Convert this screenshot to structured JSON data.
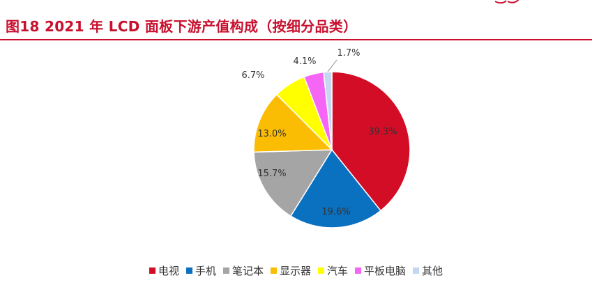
{
  "figure": {
    "title": "图18  2021 年 LCD 面板下游产值构成（按细分品类）"
  },
  "chart_data": {
    "type": "pie",
    "title": "",
    "slices": [
      {
        "label": "电视",
        "value": 39.3,
        "display": "39.3%",
        "color": "#d40d27"
      },
      {
        "label": "手机",
        "value": 19.6,
        "display": "19.6%",
        "color": "#0a70c0"
      },
      {
        "label": "笔记本",
        "value": 15.7,
        "display": "15.7%",
        "color": "#a5a5a5"
      },
      {
        "label": "显示器",
        "value": 13.0,
        "display": "13.0%",
        "color": "#fbbd04"
      },
      {
        "label": "汽车",
        "value": 6.7,
        "display": "6.7%",
        "color": "#ffff00"
      },
      {
        "label": "平板电脑",
        "value": 4.1,
        "display": "4.1%",
        "color": "#f566f5"
      },
      {
        "label": "其他",
        "value": 1.7,
        "display": "1.7%",
        "color": "#c3d7f0"
      }
    ],
    "legend_position": "bottom"
  }
}
